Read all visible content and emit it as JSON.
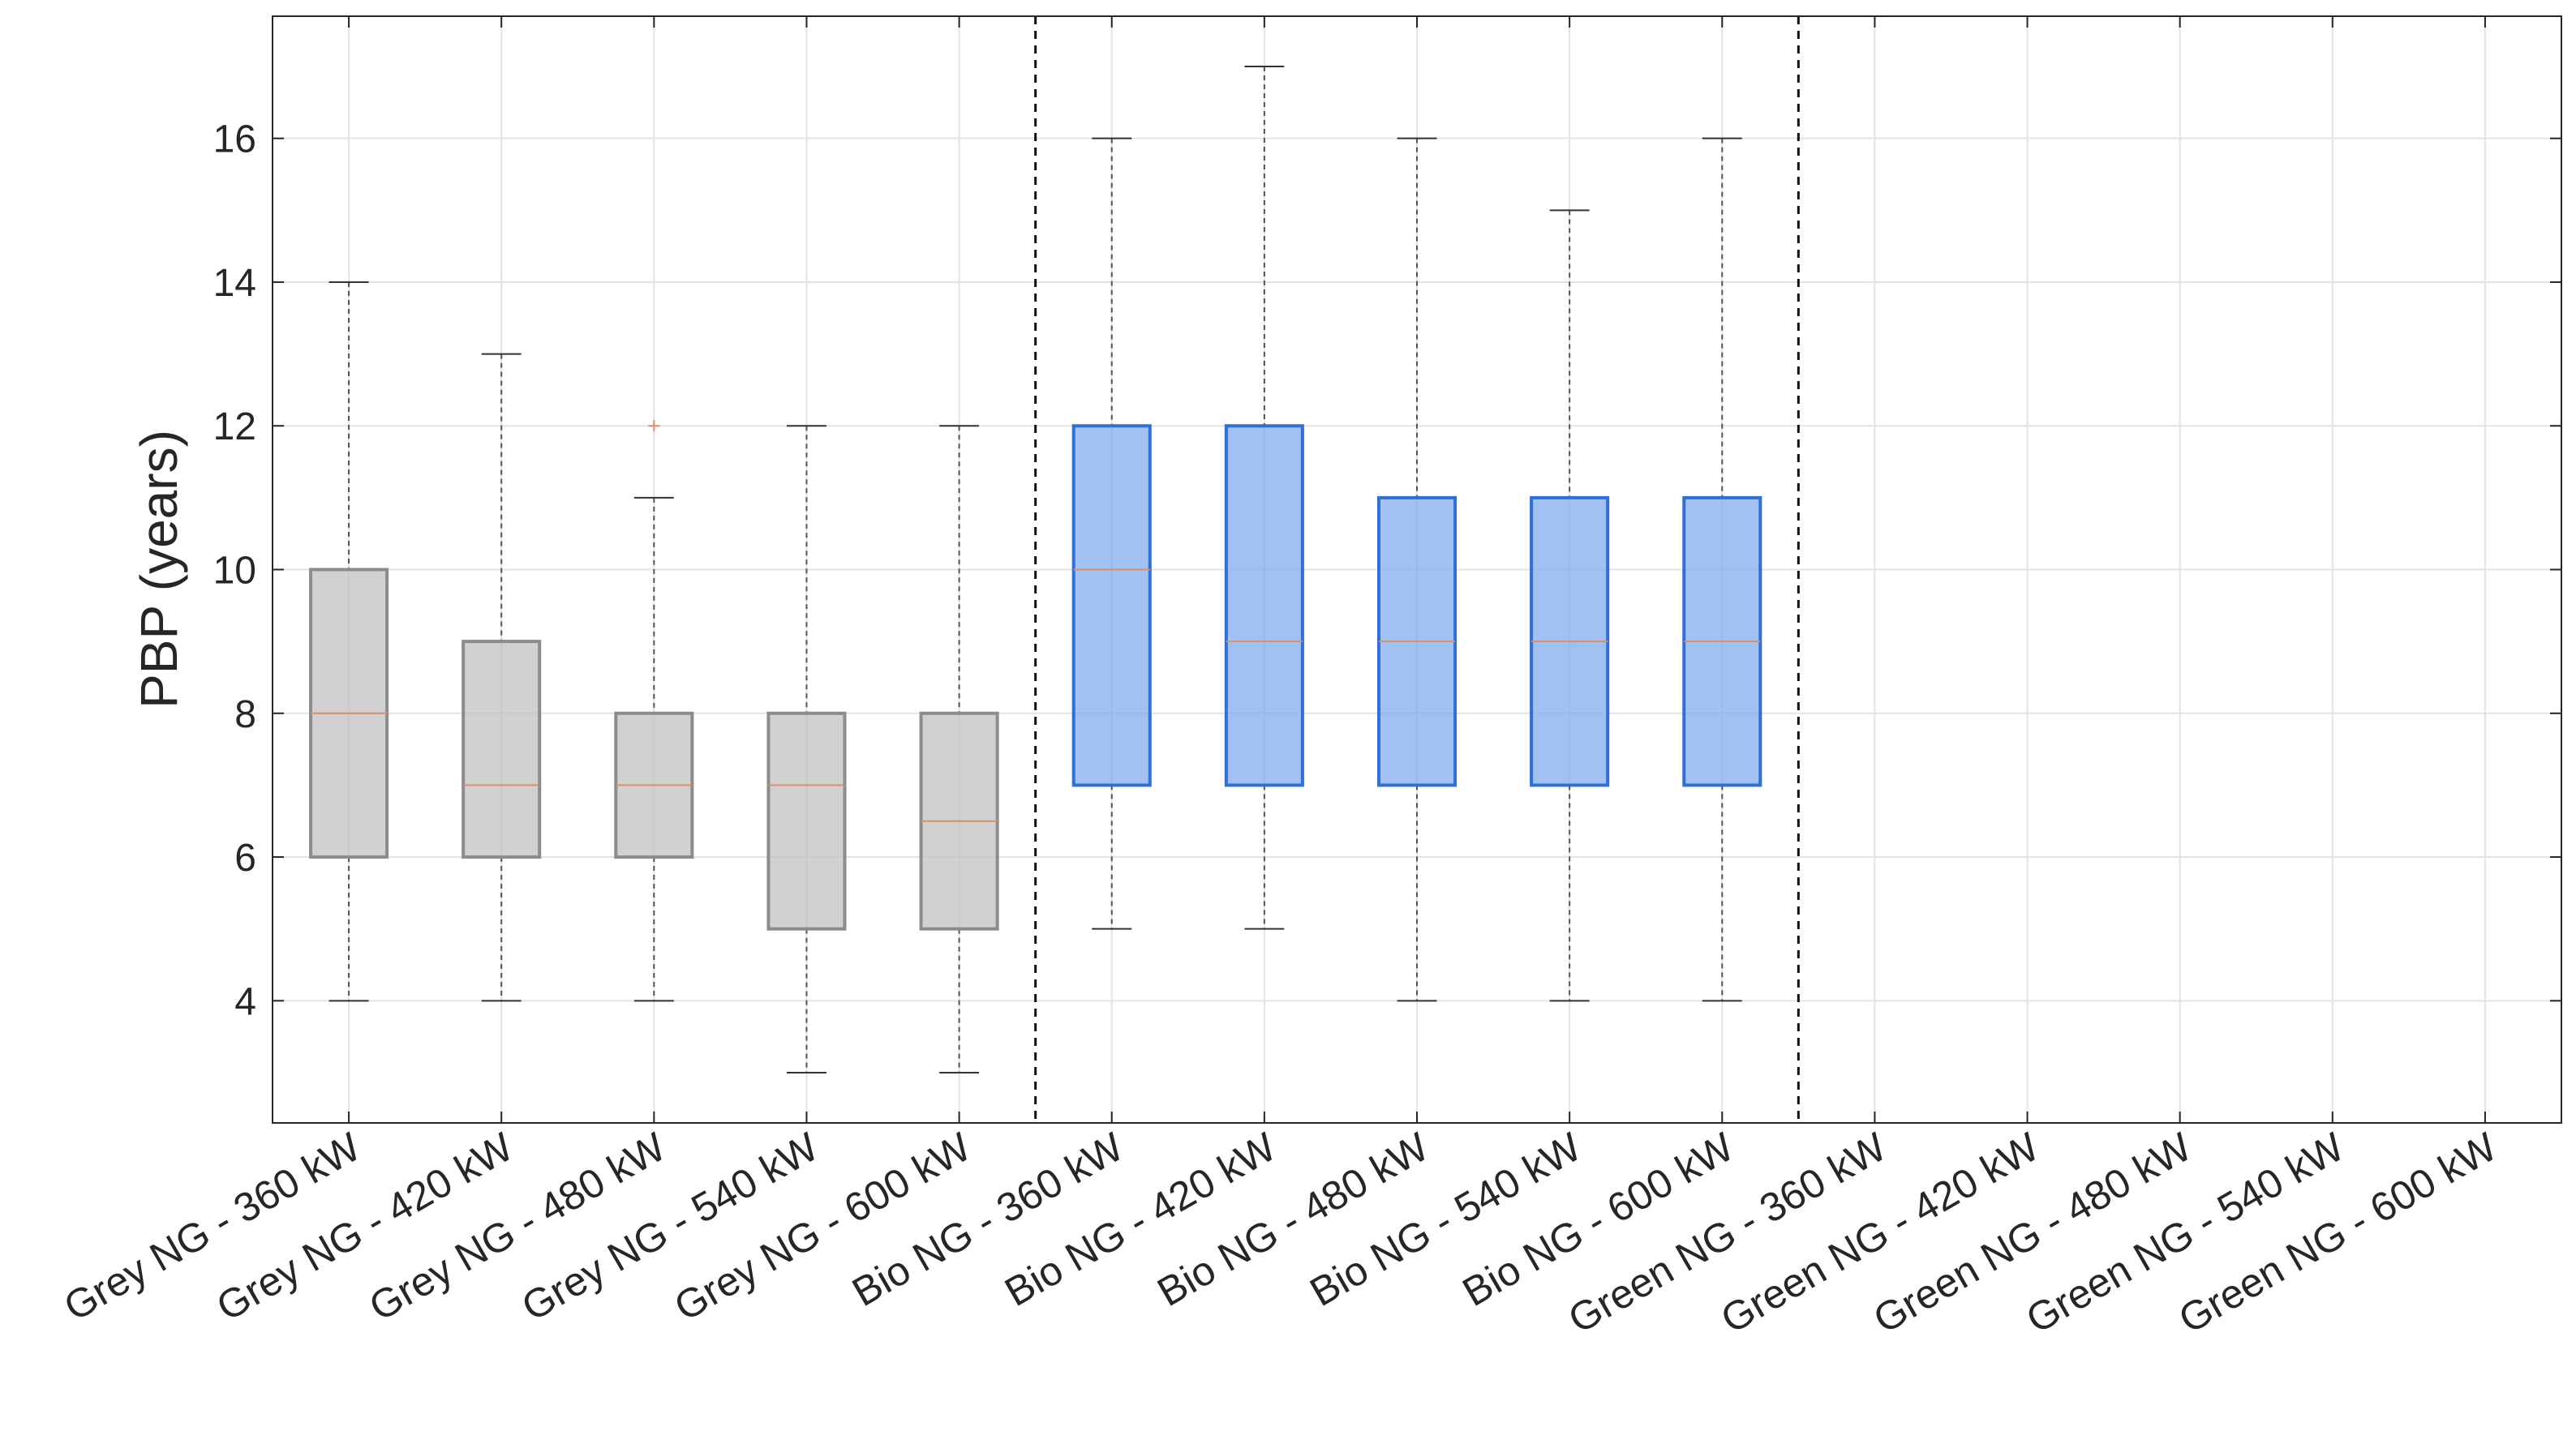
{
  "chart_data": {
    "type": "box",
    "title": "",
    "xlabel": "",
    "ylabel": "PBP (years)",
    "ylim": [
      2.3,
      17.7
    ],
    "yticks": [
      4,
      6,
      8,
      10,
      12,
      14,
      16
    ],
    "grid": true,
    "categories": [
      "Grey NG - 360 kW",
      "Grey NG - 420 kW",
      "Grey NG - 480 kW",
      "Grey NG - 540 kW",
      "Grey NG - 600 kW",
      "Bio NG - 360 kW",
      "Bio NG - 420 kW",
      "Bio NG - 480 kW",
      "Bio NG - 540 kW",
      "Bio NG - 600 kW",
      "Green NG - 360 kW",
      "Green NG - 420 kW",
      "Green NG - 480 kW",
      "Green NG - 540 kW",
      "Green NG - 600 kW"
    ],
    "boxes": [
      {
        "whisker_low": 4,
        "q1": 6,
        "median": 8,
        "q3": 10,
        "whisker_high": 14,
        "outliers": []
      },
      {
        "whisker_low": 4,
        "q1": 6,
        "median": 7,
        "q3": 9,
        "whisker_high": 13,
        "outliers": []
      },
      {
        "whisker_low": 4,
        "q1": 6,
        "median": 7,
        "q3": 8,
        "whisker_high": 11,
        "outliers": [
          12
        ]
      },
      {
        "whisker_low": 3,
        "q1": 5,
        "median": 7,
        "q3": 8,
        "whisker_high": 12,
        "outliers": []
      },
      {
        "whisker_low": 3,
        "q1": 5,
        "median": 6.5,
        "q3": 8,
        "whisker_high": 12,
        "outliers": []
      },
      {
        "whisker_low": 5,
        "q1": 7,
        "median": 10,
        "q3": 12,
        "whisker_high": 16,
        "outliers": []
      },
      {
        "whisker_low": 5,
        "q1": 7,
        "median": 9,
        "q3": 12,
        "whisker_high": 17,
        "outliers": []
      },
      {
        "whisker_low": 4,
        "q1": 7,
        "median": 9,
        "q3": 11,
        "whisker_high": 16,
        "outliers": []
      },
      {
        "whisker_low": 4,
        "q1": 7,
        "median": 9,
        "q3": 11,
        "whisker_high": 15,
        "outliers": []
      },
      {
        "whisker_low": 4,
        "q1": 7,
        "median": 9,
        "q3": 11,
        "whisker_high": 16,
        "outliers": []
      },
      null,
      null,
      null,
      null,
      null
    ],
    "group_colors": [
      "#bdbdbd",
      "#7ba6ee",
      "#7ba6ee"
    ],
    "group_edge_colors": [
      "#8c8c8c",
      "#2f6fd6",
      "#2f6fd6"
    ],
    "median_color": "#d9906a",
    "separators_after": [
      5,
      10
    ]
  }
}
